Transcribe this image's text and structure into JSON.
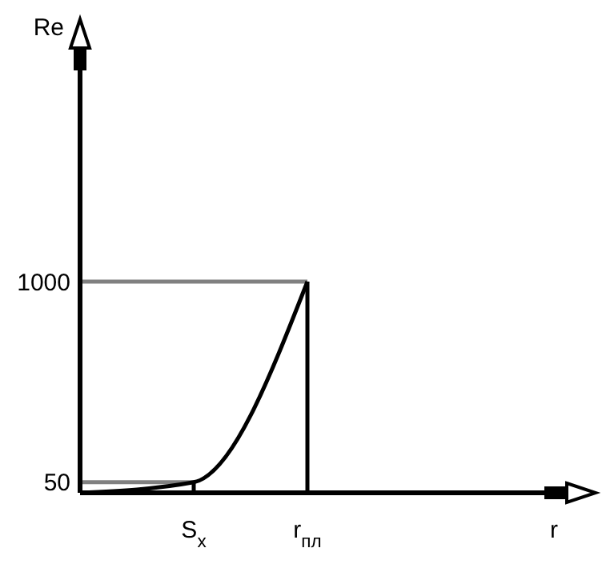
{
  "chart_data": {
    "type": "line",
    "ylabel": "Re",
    "categories": [
      null,
      "S$_{x}$",
      "r$_{пл}$"
    ],
    "series": [
      {
        "color": "#000000",
        "values": [
          0,
          50,
          1000
        ]
      }
    ],
    "ylim": [
      0,
      2000
    ],
    "yticks": [
      50,
      1000
    ],
    "grid": false,
    "marker": "none",
    "line_style": "solid",
    "ref_lines": [
      {
        "axis": "y",
        "value": 50,
        "color": "#808080"
      },
      {
        "axis": "y",
        "value": 1000,
        "color": "#808080"
      }
    ],
    "annotations": [
      "r"
    ]
  }
}
